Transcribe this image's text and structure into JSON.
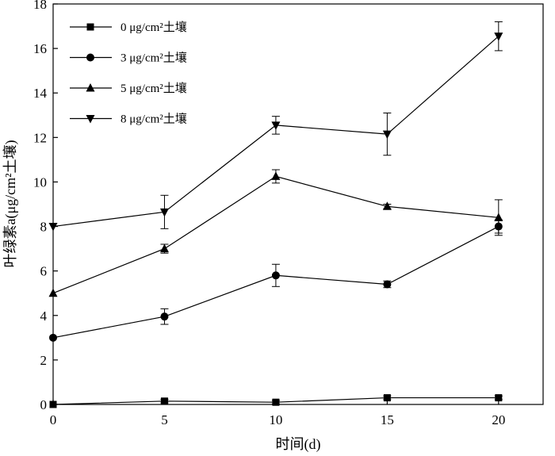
{
  "chart_data": {
    "type": "line",
    "title": "",
    "xlabel": "时间(d)",
    "ylabel": "叶绿素a(μg/cm²土壤)",
    "xlim": [
      0,
      22
    ],
    "ylim": [
      0,
      18
    ],
    "xticks": [
      0,
      5,
      10,
      15,
      20
    ],
    "yticks": [
      0,
      2,
      4,
      6,
      8,
      10,
      12,
      14,
      16,
      18
    ],
    "x": [
      0,
      5,
      10,
      15,
      20
    ],
    "grid": false,
    "legend_position": "top-left",
    "series": [
      {
        "name": "0 μg/cm²土壤",
        "marker": "square",
        "values": [
          0.0,
          0.15,
          0.1,
          0.3,
          0.3
        ],
        "errors": [
          0.0,
          0.08,
          0.08,
          0.08,
          0.08
        ]
      },
      {
        "name": "3 μg/cm²土壤",
        "marker": "circle",
        "values": [
          3.0,
          3.95,
          5.8,
          5.4,
          8.0
        ],
        "errors": [
          0.0,
          0.35,
          0.5,
          0.15,
          0.3
        ]
      },
      {
        "name": "5 μg/cm²土壤",
        "marker": "triangle-up",
        "values": [
          5.0,
          7.0,
          10.25,
          8.9,
          8.4
        ],
        "errors": [
          0.0,
          0.2,
          0.3,
          0.1,
          0.8
        ]
      },
      {
        "name": "8 μg/cm²土壤",
        "marker": "triangle-down",
        "values": [
          8.0,
          8.65,
          12.55,
          12.15,
          16.55
        ],
        "errors": [
          0.0,
          0.75,
          0.4,
          0.95,
          0.65
        ]
      }
    ]
  }
}
